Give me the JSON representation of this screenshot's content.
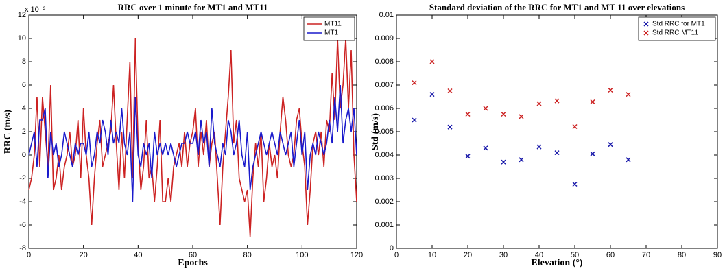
{
  "chart_data": [
    {
      "type": "line",
      "title": "RRC over 1 minute for MT1 and MT11",
      "x_label": "Epochs",
      "y_label": "RRC (m/s)",
      "y_multiplier": "x 10⁻³",
      "xlim": [
        0,
        120
      ],
      "xticks": [
        0,
        20,
        40,
        60,
        80,
        100,
        120
      ],
      "ylim": [
        -8,
        12
      ],
      "yticks": [
        -8,
        -6,
        -4,
        -2,
        0,
        2,
        4,
        6,
        8,
        10,
        12
      ],
      "legend": "upper right",
      "x": [
        0,
        1,
        2,
        3,
        4,
        5,
        6,
        7,
        8,
        9,
        10,
        11,
        12,
        13,
        14,
        15,
        16,
        17,
        18,
        19,
        20,
        21,
        22,
        23,
        24,
        25,
        26,
        27,
        28,
        29,
        30,
        31,
        32,
        33,
        34,
        35,
        36,
        37,
        38,
        39,
        40,
        41,
        42,
        43,
        44,
        45,
        46,
        47,
        48,
        49,
        50,
        51,
        52,
        53,
        54,
        55,
        56,
        57,
        58,
        59,
        60,
        61,
        62,
        63,
        64,
        65,
        66,
        67,
        68,
        69,
        70,
        71,
        72,
        73,
        74,
        75,
        76,
        77,
        78,
        79,
        80,
        81,
        82,
        83,
        84,
        85,
        86,
        87,
        88,
        89,
        90,
        91,
        92,
        93,
        94,
        95,
        96,
        97,
        98,
        99,
        100,
        101,
        102,
        103,
        104,
        105,
        106,
        107,
        108,
        109,
        110,
        111,
        112,
        113,
        114,
        115,
        116,
        117,
        118,
        119,
        120
      ],
      "series": [
        {
          "name": "MT11",
          "color": "#cc2222",
          "values": [
            -3,
            -2,
            0,
            5,
            -1,
            5,
            2,
            -1,
            6,
            -3,
            -2,
            0,
            -3,
            -1,
            0,
            2,
            -1,
            0,
            3,
            -2,
            4,
            0,
            -2,
            -6,
            -2,
            1,
            3,
            -1,
            0,
            1,
            2,
            6,
            1,
            -3,
            2,
            -2,
            3,
            8,
            -2,
            10,
            1,
            -3,
            -1,
            3,
            -2,
            -1,
            -4,
            -1,
            3,
            -4,
            -4,
            -2,
            -4,
            -1,
            0,
            1,
            -1,
            2,
            -1,
            1,
            2,
            4,
            -1,
            2,
            0,
            3,
            -1,
            1,
            2,
            -2,
            -6,
            -1,
            2,
            5,
            9,
            1,
            3,
            -2,
            -3,
            -4,
            -3,
            -7,
            -2,
            1,
            -1,
            2,
            -4,
            -2,
            1,
            -1,
            0,
            -2,
            2,
            5,
            3,
            0,
            -1,
            0,
            3,
            4,
            1,
            -1,
            -6,
            -3,
            1,
            2,
            0,
            2,
            -1,
            3,
            2,
            7,
            3,
            10,
            4,
            6,
            10,
            4,
            9,
            0,
            -4
          ]
        },
        {
          "name": "MT1",
          "color": "#1a1acc",
          "values": [
            0,
            1,
            2,
            -1,
            3,
            3,
            4,
            -2,
            2,
            0,
            1,
            -1,
            0,
            2,
            1,
            0,
            -1,
            1,
            0,
            1,
            1,
            0,
            2,
            -1,
            0,
            2,
            1,
            3,
            2,
            0,
            3,
            1,
            2,
            1,
            4,
            1,
            0,
            2,
            -4,
            5,
            0,
            -1,
            1,
            0,
            1,
            -2,
            2,
            0,
            1,
            0,
            1,
            0,
            1,
            0,
            -1,
            0,
            1,
            1,
            2,
            1,
            1,
            2,
            0,
            3,
            1,
            2,
            -1,
            4,
            1,
            0,
            -1,
            1,
            0,
            3,
            2,
            0,
            1,
            3,
            0,
            -1,
            2,
            -3,
            -1,
            0,
            1,
            2,
            1,
            0,
            1,
            2,
            1,
            0,
            2,
            1,
            0,
            1,
            2,
            -1,
            1,
            3,
            0,
            2,
            -3,
            0,
            1,
            0,
            2,
            1,
            0,
            1,
            3,
            1,
            5,
            2,
            6,
            1,
            3,
            4,
            2,
            4,
            0
          ]
        }
      ]
    },
    {
      "type": "scatter",
      "title": "Standard deviation of the RRC for MT1 and MT 11 over elevations",
      "x_label": "Elevation (°)",
      "y_label": "Std (m/s)",
      "xlim": [
        0,
        90
      ],
      "xticks": [
        0,
        10,
        20,
        30,
        40,
        50,
        60,
        70,
        80,
        90
      ],
      "ylim": [
        0,
        0.01
      ],
      "yticks": [
        0,
        0.001,
        0.002,
        0.003,
        0.004,
        0.005,
        0.006,
        0.007,
        0.008,
        0.009,
        0.01
      ],
      "legend": "upper right",
      "x": [
        5,
        10,
        15,
        20,
        25,
        30,
        35,
        40,
        45,
        50,
        55,
        60,
        65
      ],
      "series": [
        {
          "name": "Std RRC for MT1",
          "color": "#1a1aaa",
          "values": [
            0.0055,
            0.0066,
            0.0052,
            0.00395,
            0.0043,
            0.0037,
            0.0038,
            0.00435,
            0.0041,
            0.00275,
            0.00405,
            0.00445,
            0.0038
          ]
        },
        {
          "name": "Std RRC MT11",
          "color": "#cc2222",
          "values": [
            0.0071,
            0.008,
            0.00675,
            0.00575,
            0.006,
            0.00575,
            0.00565,
            0.0062,
            0.00632,
            0.00522,
            0.00628,
            0.00678,
            0.0066
          ]
        }
      ]
    }
  ]
}
